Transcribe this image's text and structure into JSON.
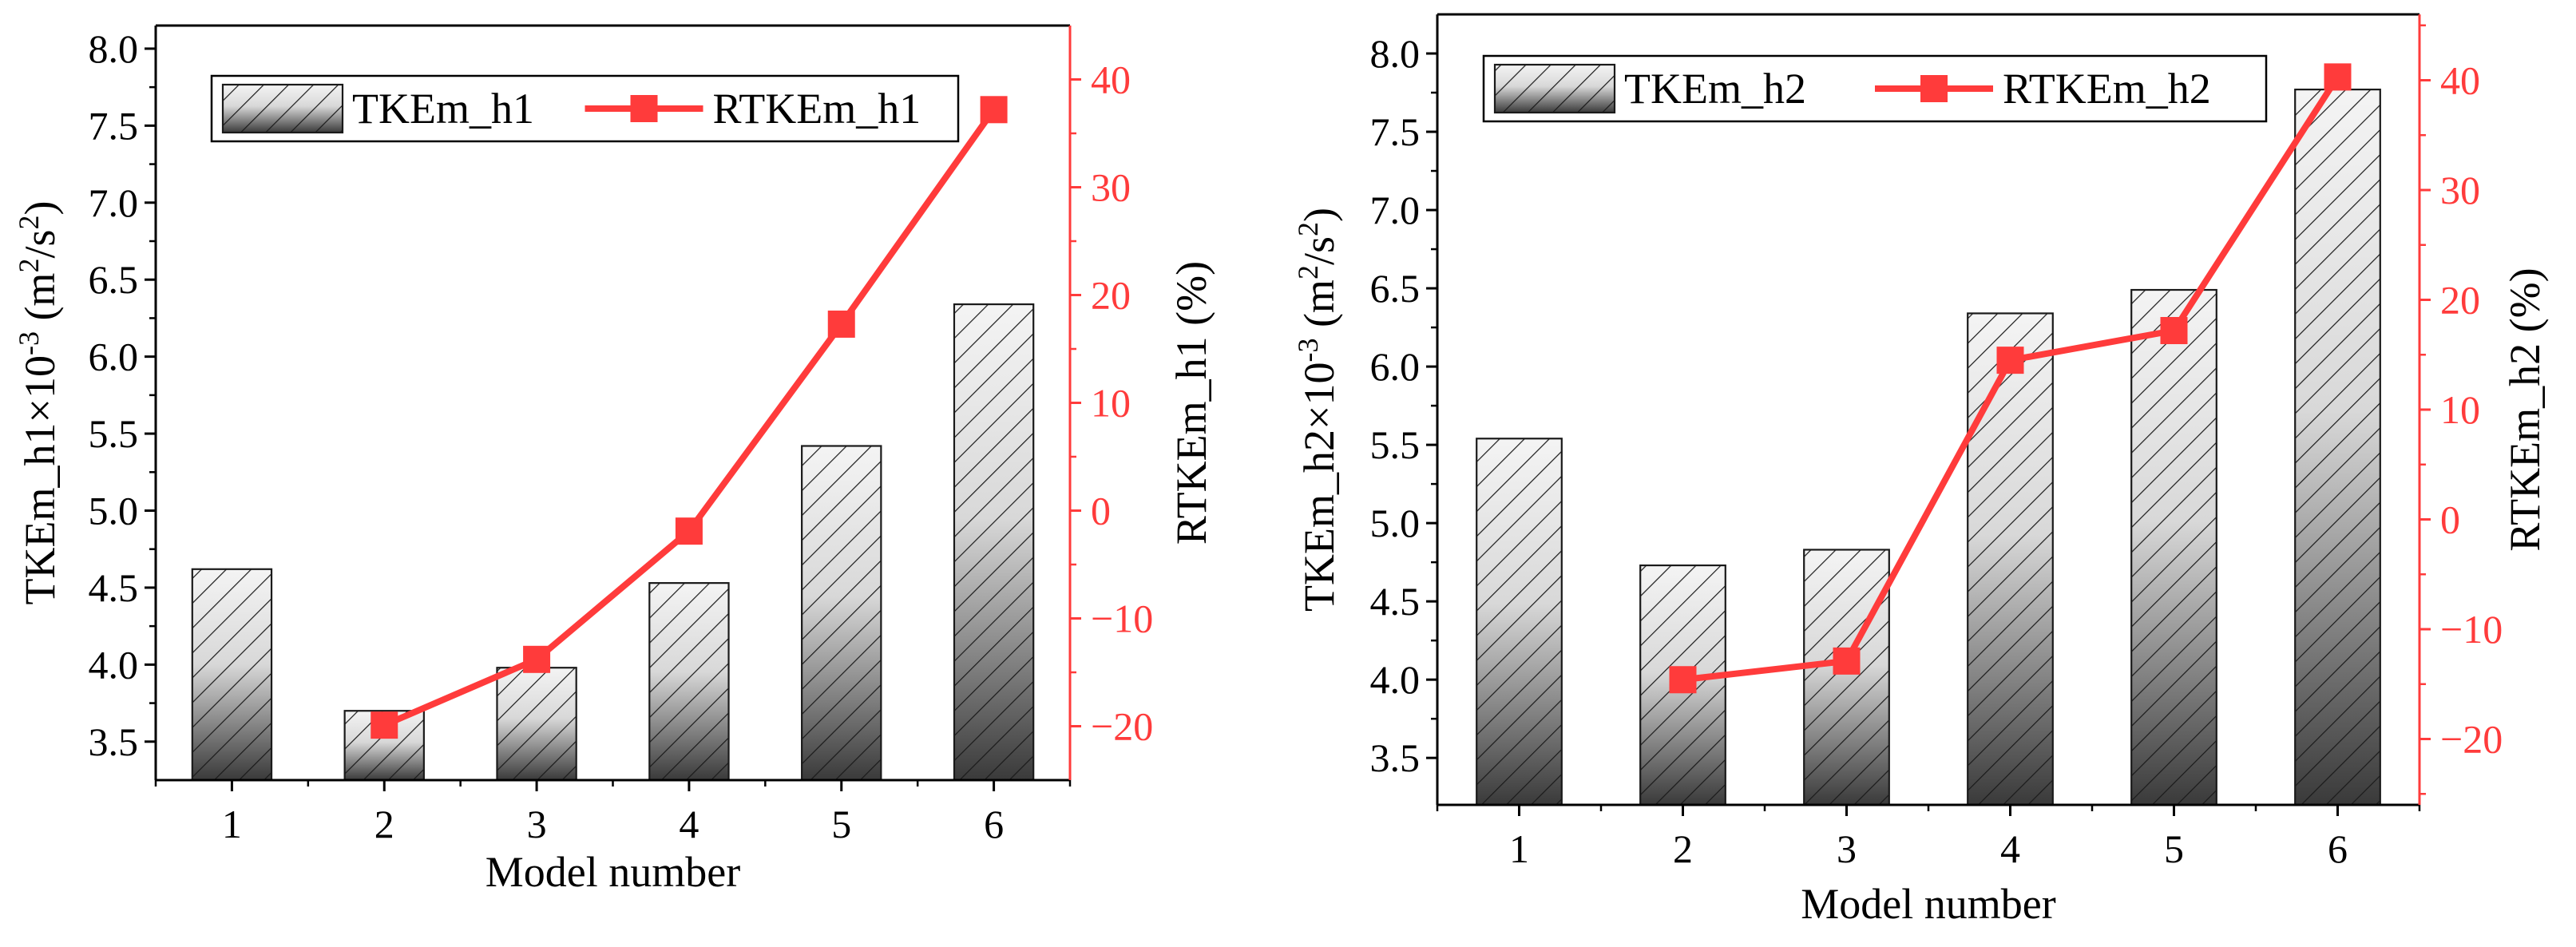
{
  "chart_data": [
    {
      "type": "bar",
      "categories": [
        "1",
        "2",
        "3",
        "4",
        "5",
        "6"
      ],
      "xlabel": "Model number",
      "ylabel_left": {
        "base": "TKEm_h1×10",
        "exp": "-3",
        "unit_open": " (m",
        "unit_sup1": "2",
        "unit_mid": "/s",
        "unit_sup2": "2",
        "unit_close": ")"
      },
      "ylabel_right": "RTKEm_h1 (%)",
      "ylim_left": [
        3.25,
        8.15
      ],
      "ylim_right": [
        -25,
        45
      ],
      "yticks_left": [
        "3.5",
        "4.0",
        "4.5",
        "5.0",
        "5.5",
        "6.0",
        "6.5",
        "7.0",
        "7.5",
        "8.0"
      ],
      "yticks_right": [
        "-20",
        "-10",
        "0",
        "10",
        "20",
        "30",
        "40"
      ],
      "series": [
        {
          "name": "TKEm_h1",
          "kind": "bar",
          "axis": "left",
          "values": [
            4.62,
            3.7,
            3.98,
            4.53,
            5.42,
            6.34
          ]
        },
        {
          "name": "RTKEm_h1",
          "kind": "line",
          "axis": "right",
          "values": [
            null,
            -19.9,
            -13.8,
            -1.9,
            17.3,
            37.2
          ]
        }
      ],
      "legend": "top-left",
      "colors": {
        "line": "#ff3b3b",
        "right_axis": "#ff3b3b",
        "bar_dark": "#3c3c3c",
        "bar_light": "#f2f2f2"
      }
    },
    {
      "type": "bar",
      "categories": [
        "1",
        "2",
        "3",
        "4",
        "5",
        "6"
      ],
      "xlabel": "Model number",
      "ylabel_left": {
        "base": "TKEm_h2×10",
        "exp": "-3",
        "unit_open": " (m",
        "unit_sup1": "2",
        "unit_mid": "/s",
        "unit_sup2": "2",
        "unit_close": ")"
      },
      "ylabel_right": "RTKEm_h2 (%)",
      "ylim_left": [
        3.2,
        8.25
      ],
      "ylim_right": [
        -26,
        46
      ],
      "yticks_left": [
        "3.5",
        "4.0",
        "4.5",
        "5.0",
        "5.5",
        "6.0",
        "6.5",
        "7.0",
        "7.5",
        "8.0"
      ],
      "yticks_right": [
        "-20",
        "-10",
        "0",
        "10",
        "20",
        "30",
        "40"
      ],
      "series": [
        {
          "name": "TKEm_h2",
          "kind": "bar",
          "axis": "left",
          "values": [
            5.54,
            4.73,
            4.83,
            6.34,
            6.49,
            7.77
          ]
        },
        {
          "name": "RTKEm_h2",
          "kind": "line",
          "axis": "right",
          "values": [
            null,
            -14.6,
            -12.9,
            14.5,
            17.2,
            40.3
          ]
        }
      ],
      "legend": "top",
      "colors": {
        "line": "#ff3b3b",
        "right_axis": "#ff3b3b",
        "bar_dark": "#3c3c3c",
        "bar_light": "#f2f2f2"
      }
    }
  ]
}
